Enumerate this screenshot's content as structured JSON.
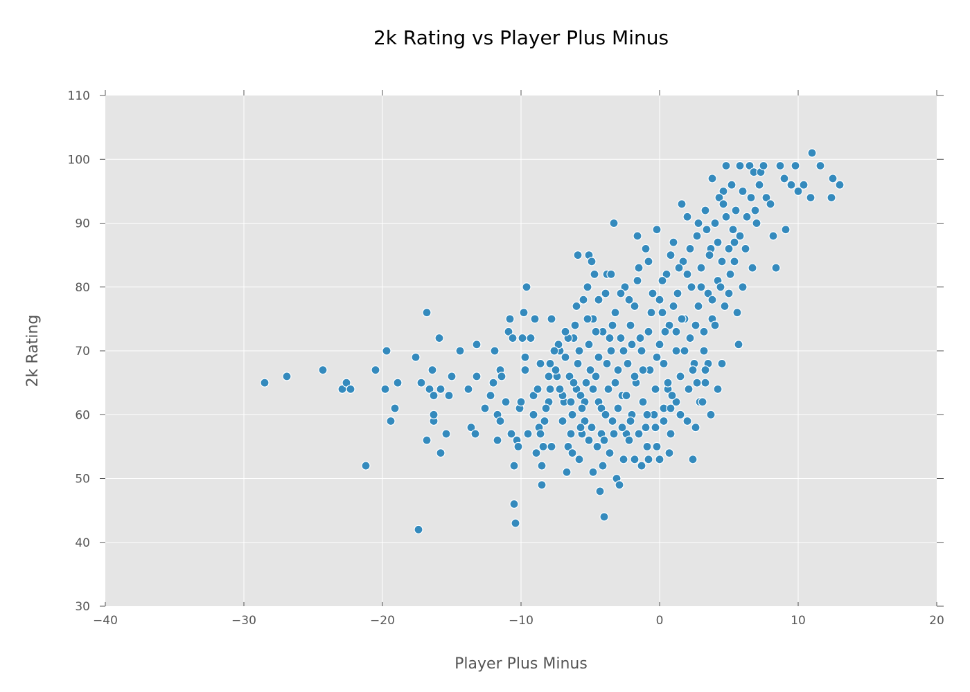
{
  "chart_data": {
    "type": "scatter",
    "title": "2k Rating vs Player Plus Minus",
    "xlabel": "Player Plus Minus",
    "ylabel": "2k Rating",
    "xlim": [
      -40,
      20
    ],
    "ylim": [
      30,
      110
    ],
    "xticks": [
      -40,
      -30,
      -20,
      -10,
      0,
      10,
      20
    ],
    "xtick_labels": [
      "−40",
      "−30",
      "−20",
      "−10",
      "0",
      "10",
      "20"
    ],
    "yticks": [
      30,
      40,
      50,
      60,
      70,
      80,
      90,
      100,
      110
    ],
    "ytick_labels": [
      "30",
      "40",
      "50",
      "60",
      "70",
      "80",
      "90",
      "100",
      "110"
    ],
    "grid": true,
    "legend": "none",
    "colors": {
      "background": "#e5e5e5",
      "grid": "#ffffff",
      "marker": "#348abd",
      "marker_edge": "#ffffff",
      "text": "#555555"
    },
    "points": [
      [
        -28.5,
        65
      ],
      [
        -26.9,
        66
      ],
      [
        -24.3,
        67
      ],
      [
        -22.9,
        64
      ],
      [
        -22.6,
        65
      ],
      [
        -22.3,
        64
      ],
      [
        -21.2,
        52
      ],
      [
        -20.5,
        67
      ],
      [
        -19.8,
        64
      ],
      [
        -19.7,
        70
      ],
      [
        -19.4,
        59
      ],
      [
        -19.1,
        61
      ],
      [
        -18.9,
        65
      ],
      [
        -17.6,
        69
      ],
      [
        -17.4,
        42
      ],
      [
        -17.2,
        65
      ],
      [
        -16.8,
        76
      ],
      [
        -16.8,
        56
      ],
      [
        -16.6,
        64
      ],
      [
        -16.4,
        67
      ],
      [
        -16.3,
        63
      ],
      [
        -16.3,
        59
      ],
      [
        -16.3,
        60
      ],
      [
        -15.9,
        72
      ],
      [
        -15.8,
        54
      ],
      [
        -15.8,
        64
      ],
      [
        -15.4,
        57
      ],
      [
        -15.2,
        63
      ],
      [
        -15.0,
        66
      ],
      [
        -14.4,
        70
      ],
      [
        -13.8,
        64
      ],
      [
        -13.6,
        58
      ],
      [
        -13.3,
        57
      ],
      [
        -13.2,
        71
      ],
      [
        -13.2,
        66
      ],
      [
        -12.6,
        61
      ],
      [
        -12.2,
        63
      ],
      [
        -12.0,
        65
      ],
      [
        -11.9,
        70
      ],
      [
        -11.7,
        56
      ],
      [
        -11.7,
        60
      ],
      [
        -11.5,
        59
      ],
      [
        -11.5,
        67
      ],
      [
        -11.4,
        66
      ],
      [
        -11.1,
        62
      ],
      [
        -10.9,
        73
      ],
      [
        -10.8,
        75
      ],
      [
        -10.7,
        57
      ],
      [
        -10.6,
        72
      ],
      [
        -10.5,
        52
      ],
      [
        -10.5,
        46
      ],
      [
        -10.4,
        43
      ],
      [
        -10.3,
        56
      ],
      [
        -10.2,
        55
      ],
      [
        -10.1,
        61
      ],
      [
        -10.0,
        62
      ],
      [
        -9.9,
        72
      ],
      [
        -9.8,
        76
      ],
      [
        -9.7,
        69
      ],
      [
        -9.6,
        80
      ],
      [
        -9.5,
        57
      ],
      [
        -9.3,
        72
      ],
      [
        -9.1,
        60
      ],
      [
        -9.0,
        75
      ],
      [
        -8.9,
        54
      ],
      [
        -8.7,
        58
      ],
      [
        -8.6,
        57
      ],
      [
        -8.5,
        52
      ],
      [
        -8.5,
        49
      ],
      [
        -8.4,
        55
      ],
      [
        -8.3,
        59
      ],
      [
        -8.0,
        62
      ],
      [
        -7.9,
        68
      ],
      [
        -7.8,
        55
      ],
      [
        -7.8,
        75
      ],
      [
        -7.4,
        66
      ],
      [
        -7.2,
        70
      ],
      [
        -6.9,
        62
      ],
      [
        -6.7,
        51
      ],
      [
        -6.6,
        55
      ],
      [
        -6.4,
        57
      ],
      [
        -6.2,
        72
      ],
      [
        -6.0,
        64
      ],
      [
        -5.9,
        85
      ],
      [
        -5.8,
        53
      ],
      [
        -5.6,
        57
      ],
      [
        -5.4,
        59
      ],
      [
        -5.2,
        80
      ],
      [
        -5.1,
        85
      ],
      [
        -4.9,
        84
      ],
      [
        -4.8,
        51
      ],
      [
        -4.7,
        82
      ],
      [
        -4.4,
        62
      ],
      [
        -4.3,
        48
      ],
      [
        -4.1,
        52
      ],
      [
        -4.0,
        44
      ],
      [
        -3.8,
        82
      ],
      [
        -3.6,
        54
      ],
      [
        -3.5,
        82
      ],
      [
        -3.3,
        90
      ],
      [
        -3.1,
        50
      ],
      [
        -2.9,
        49
      ],
      [
        -2.6,
        53
      ],
      [
        -2.4,
        57
      ],
      [
        -2.2,
        56
      ],
      [
        -1.8,
        53
      ],
      [
        -1.6,
        88
      ],
      [
        -1.3,
        52
      ],
      [
        -0.9,
        55
      ],
      [
        -0.8,
        53
      ],
      [
        -0.2,
        55
      ],
      [
        0.0,
        53
      ],
      [
        0.3,
        61
      ],
      [
        0.6,
        64
      ],
      [
        0.7,
        54
      ],
      [
        0.8,
        57
      ],
      [
        1.2,
        73
      ],
      [
        1.6,
        93
      ],
      [
        2.0,
        59
      ],
      [
        2.4,
        53
      ],
      [
        2.6,
        58
      ],
      [
        2.9,
        62
      ],
      [
        3.1,
        62
      ],
      [
        3.3,
        65
      ],
      [
        3.5,
        68
      ],
      [
        3.7,
        60
      ],
      [
        3.8,
        97
      ],
      [
        4.2,
        64
      ],
      [
        4.5,
        68
      ],
      [
        4.6,
        95
      ],
      [
        4.8,
        99
      ],
      [
        5.1,
        82
      ],
      [
        5.4,
        87
      ],
      [
        5.6,
        76
      ],
      [
        5.7,
        71
      ],
      [
        5.8,
        99
      ],
      [
        6.0,
        80
      ],
      [
        6.2,
        86
      ],
      [
        6.5,
        99
      ],
      [
        6.7,
        83
      ],
      [
        6.8,
        98
      ],
      [
        7.0,
        90
      ],
      [
        7.3,
        98
      ],
      [
        7.5,
        99
      ],
      [
        7.7,
        94
      ],
      [
        8.0,
        93
      ],
      [
        8.2,
        88
      ],
      [
        8.4,
        83
      ],
      [
        8.7,
        99
      ],
      [
        9.0,
        97
      ],
      [
        9.1,
        89
      ],
      [
        9.5,
        96
      ],
      [
        9.8,
        99
      ],
      [
        10.0,
        95
      ],
      [
        10.4,
        96
      ],
      [
        10.9,
        94
      ],
      [
        11.0,
        101
      ],
      [
        11.6,
        99
      ],
      [
        12.4,
        94
      ],
      [
        12.5,
        97
      ],
      [
        13.0,
        96
      ],
      [
        -9.7,
        67
      ],
      [
        -9.1,
        63
      ],
      [
        -8.8,
        64
      ],
      [
        -8.6,
        68
      ],
      [
        -8.2,
        61
      ],
      [
        -7.9,
        64
      ],
      [
        -7.5,
        67
      ],
      [
        -7.3,
        71
      ],
      [
        -7.0,
        63
      ],
      [
        -6.8,
        69
      ],
      [
        -6.5,
        66
      ],
      [
        -6.3,
        60
      ],
      [
        -6.1,
        74
      ],
      [
        -5.9,
        68
      ],
      [
        -5.7,
        63
      ],
      [
        -5.5,
        78
      ],
      [
        -5.3,
        65
      ],
      [
        -5.1,
        71
      ],
      [
        -4.9,
        58
      ],
      [
        -4.8,
        75
      ],
      [
        -4.6,
        66
      ],
      [
        -4.4,
        69
      ],
      [
        -4.2,
        61
      ],
      [
        -4.1,
        73
      ],
      [
        -3.9,
        79
      ],
      [
        -3.7,
        64
      ],
      [
        -3.5,
        70
      ],
      [
        -3.4,
        59
      ],
      [
        -3.2,
        76
      ],
      [
        -3.0,
        67
      ],
      [
        -2.8,
        72
      ],
      [
        -2.7,
        63
      ],
      [
        -2.5,
        80
      ],
      [
        -2.3,
        68
      ],
      [
        -2.1,
        74
      ],
      [
        -2.0,
        60
      ],
      [
        -1.8,
        77
      ],
      [
        -1.7,
        65
      ],
      [
        -1.5,
        83
      ],
      [
        -1.3,
        70
      ],
      [
        -1.2,
        62
      ],
      [
        -1.0,
        86
      ],
      [
        -0.8,
        73
      ],
      [
        -0.7,
        67
      ],
      [
        -0.5,
        79
      ],
      [
        -0.3,
        64
      ],
      [
        -0.2,
        89
      ],
      [
        0.0,
        71
      ],
      [
        0.2,
        76
      ],
      [
        0.3,
        68
      ],
      [
        0.5,
        82
      ],
      [
        0.7,
        74
      ],
      [
        0.8,
        61
      ],
      [
        1.0,
        87
      ],
      [
        1.2,
        70
      ],
      [
        1.3,
        79
      ],
      [
        1.5,
        66
      ],
      [
        1.7,
        84
      ],
      [
        1.8,
        75
      ],
      [
        2.0,
        91
      ],
      [
        2.2,
        72
      ],
      [
        2.3,
        80
      ],
      [
        2.5,
        68
      ],
      [
        2.7,
        88
      ],
      [
        2.8,
        77
      ],
      [
        3.0,
        83
      ],
      [
        3.2,
        73
      ],
      [
        3.3,
        92
      ],
      [
        3.5,
        79
      ],
      [
        3.7,
        86
      ],
      [
        3.8,
        75
      ],
      [
        4.0,
        90
      ],
      [
        4.2,
        81
      ],
      [
        4.3,
        94
      ],
      [
        4.5,
        84
      ],
      [
        4.7,
        77
      ],
      [
        4.8,
        91
      ],
      [
        5.0,
        86
      ],
      [
        5.2,
        96
      ],
      [
        5.3,
        89
      ],
      [
        5.5,
        92
      ],
      [
        5.8,
        88
      ],
      [
        6.0,
        95
      ],
      [
        6.3,
        91
      ],
      [
        6.6,
        94
      ],
      [
        6.9,
        92
      ],
      [
        7.2,
        96
      ],
      [
        -7.0,
        59
      ],
      [
        -6.6,
        72
      ],
      [
        -6.2,
        65
      ],
      [
        -5.8,
        70
      ],
      [
        -5.4,
        62
      ],
      [
        -5.0,
        67
      ],
      [
        -4.6,
        73
      ],
      [
        -4.2,
        57
      ],
      [
        -3.8,
        68
      ],
      [
        -3.4,
        74
      ],
      [
        -3.0,
        61
      ],
      [
        -2.6,
        70
      ],
      [
        -2.2,
        78
      ],
      [
        -1.8,
        66
      ],
      [
        -1.4,
        72
      ],
      [
        -1.0,
        58
      ],
      [
        -0.6,
        76
      ],
      [
        -0.2,
        69
      ],
      [
        0.2,
        81
      ],
      [
        0.6,
        65
      ],
      [
        1.0,
        77
      ],
      [
        1.4,
        83
      ],
      [
        1.8,
        70
      ],
      [
        2.2,
        86
      ],
      [
        2.6,
        74
      ],
      [
        3.0,
        80
      ],
      [
        3.4,
        89
      ],
      [
        3.8,
        78
      ],
      [
        4.2,
        87
      ],
      [
        4.6,
        93
      ],
      [
        5.0,
        79
      ],
      [
        5.4,
        84
      ],
      [
        -8.0,
        66
      ],
      [
        -7.6,
        70
      ],
      [
        -7.2,
        64
      ],
      [
        -6.8,
        73
      ],
      [
        -6.4,
        62
      ],
      [
        -6.0,
        77
      ],
      [
        -5.6,
        61
      ],
      [
        -5.2,
        75
      ],
      [
        -4.8,
        64
      ],
      [
        -4.4,
        78
      ],
      [
        -4.0,
        56
      ],
      [
        -3.6,
        72
      ],
      [
        -3.2,
        65
      ],
      [
        -2.8,
        79
      ],
      [
        -2.4,
        63
      ],
      [
        -2.0,
        71
      ],
      [
        -1.6,
        81
      ],
      [
        -1.2,
        67
      ],
      [
        -0.8,
        84
      ],
      [
        -0.4,
        60
      ],
      [
        0.0,
        78
      ],
      [
        0.4,
        73
      ],
      [
        0.8,
        85
      ],
      [
        1.2,
        62
      ],
      [
        1.6,
        75
      ],
      [
        2.0,
        82
      ],
      [
        2.4,
        67
      ],
      [
        2.8,
        90
      ],
      [
        3.2,
        70
      ],
      [
        3.6,
        85
      ],
      [
        4.0,
        74
      ],
      [
        4.4,
        80
      ],
      [
        -6.3,
        54
      ],
      [
        -5.7,
        58
      ],
      [
        -5.1,
        56
      ],
      [
        -4.5,
        55
      ],
      [
        -3.9,
        60
      ],
      [
        -3.3,
        57
      ],
      [
        -2.7,
        58
      ],
      [
        -2.1,
        59
      ],
      [
        -1.5,
        57
      ],
      [
        -0.9,
        60
      ],
      [
        -0.3,
        58
      ],
      [
        0.3,
        59
      ],
      [
        0.9,
        63
      ],
      [
        1.5,
        60
      ],
      [
        2.1,
        64
      ],
      [
        2.7,
        65
      ],
      [
        3.3,
        67
      ]
    ]
  }
}
